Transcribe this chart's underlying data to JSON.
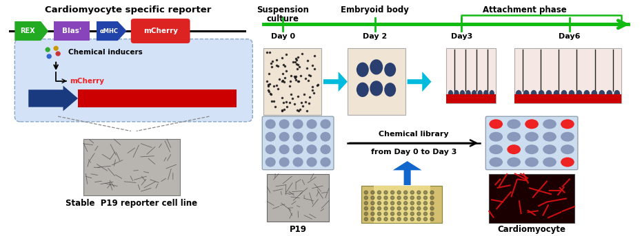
{
  "bg_color": "#ffffff",
  "title_left": "Cardiomyocyte specific reporter",
  "title_right_1": "Suspension\nculture",
  "title_eb": "Embryoid body",
  "title_ap": "Attachment phase",
  "day_labels": [
    "Day 0",
    "Day 2",
    "Day3",
    "Day6"
  ],
  "label_stable": "Stable  P19 reporter cell line",
  "label_p19": "P19",
  "label_cardio": "Cardiomyocyte",
  "label_chem_lib_1": "Chemical library",
  "label_chem_lib_2": "from Day 0 to Day 3",
  "label_chem_ind": "Chemical inducers",
  "rex_color": "#22aa22",
  "blas_color": "#8844bb",
  "amhc_color": "#2244aa",
  "mcherry_color": "#dd2222",
  "timeline_green": "#11bb11",
  "cyan_arrow": "#00bbdd",
  "blue_arrow_color": "#1166cc",
  "dot_blue": "#8899bb",
  "dot_red": "#ee2222",
  "plate_bg": "#ccddf0",
  "red_bar": "#cc0000",
  "cell_dark": "#334466",
  "bubble_fc": "#ccddf5",
  "bubble_ec": "#7799bb"
}
